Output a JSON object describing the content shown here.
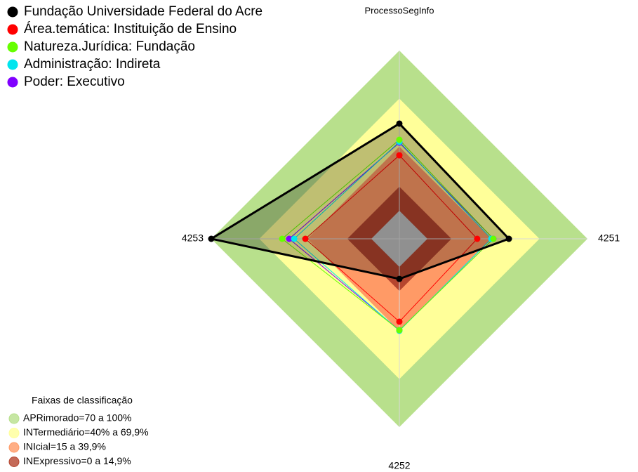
{
  "chart_data": {
    "type": "radar",
    "categories": [
      "ProcessoSegInfo",
      "4251",
      "4252",
      "4253"
    ],
    "ylim": [
      0,
      100
    ],
    "bands_title": "Faixas de classificação",
    "bands": [
      {
        "name": "APRimorado=70 a 100%",
        "color": "#b8e08c",
        "min": 70,
        "max": 100
      },
      {
        "name": "INTermediário=40% a 69,9%",
        "color": "#ffff99",
        "min": 40,
        "max": 70
      },
      {
        "name": "INIcial=15 a 39,9%",
        "color": "#ff9a66",
        "min": 15,
        "max": 40
      },
      {
        "name": "INExpressivo=0 a 14,9%",
        "color": "#b5452e",
        "min": 0,
        "max": 15
      }
    ],
    "series": [
      {
        "name": "Fundação Universidade Federal do Acre",
        "color": "#000000",
        "values": [
          54.4,
          50.9,
          7.5,
          100
        ]
      },
      {
        "name": "Área.temática: Instituição de Ensino",
        "color": "#ff0000",
        "values": [
          34.6,
          31.1,
          34.2,
          41.2
        ]
      },
      {
        "name": "Natureza.Jurídica: Fundação",
        "color": "#66ff00",
        "values": [
          44.3,
          41.2,
          39.5,
          55.7
        ]
      },
      {
        "name": "Administração: Indireta",
        "color": "#00e5ee",
        "values": [
          43,
          39.9,
          39.9,
          48.2
        ]
      },
      {
        "name": "Poder: Executivo",
        "color": "#8000ff",
        "values": [
          42.5,
          41.2,
          39.5,
          51.3
        ]
      }
    ]
  }
}
